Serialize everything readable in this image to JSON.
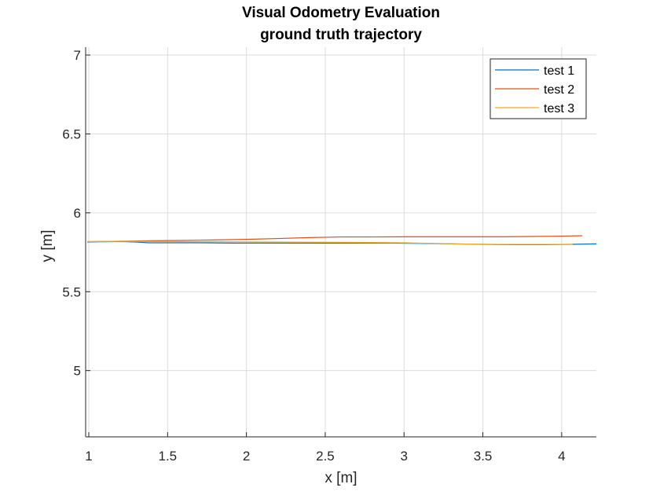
{
  "chart_data": {
    "type": "line",
    "title": "Visual Odometry Evaluation",
    "subtitle": "ground truth trajectory",
    "xlabel": "x [m]",
    "ylabel": "y [m]",
    "xlim": [
      0.98,
      4.22
    ],
    "ylim": [
      4.58,
      7.05
    ],
    "xticks": [
      1,
      1.5,
      2,
      2.5,
      3,
      3.5,
      4
    ],
    "xtick_labels": [
      "1",
      "1.5",
      "2",
      "2.5",
      "3",
      "3.5",
      "4"
    ],
    "yticks": [
      5,
      5.5,
      6,
      6.5,
      7
    ],
    "ytick_labels": [
      "5",
      "5.5",
      "6",
      "6.5",
      "7"
    ],
    "grid": true,
    "legend_position": "top-right",
    "series": [
      {
        "name": "test 1",
        "color": "#0072BD",
        "x": [
          0.99,
          1.1,
          1.2,
          1.3,
          1.38,
          1.5,
          1.7,
          1.9,
          2.1,
          2.3,
          2.5,
          2.7,
          2.9,
          3.1,
          3.3,
          3.5,
          3.7,
          3.9,
          4.05,
          4.22
        ],
        "y": [
          5.815,
          5.817,
          5.818,
          5.815,
          5.81,
          5.81,
          5.81,
          5.808,
          5.808,
          5.808,
          5.808,
          5.808,
          5.808,
          5.806,
          5.803,
          5.8,
          5.798,
          5.798,
          5.8,
          5.803
        ]
      },
      {
        "name": "test 2",
        "color": "#D95319",
        "x": [
          0.99,
          1.2,
          1.4,
          1.6,
          1.8,
          2.0,
          2.2,
          2.4,
          2.6,
          2.8,
          3.0,
          3.2,
          3.4,
          3.6,
          3.8,
          4.0,
          4.13
        ],
        "y": [
          5.817,
          5.82,
          5.823,
          5.825,
          5.828,
          5.832,
          5.837,
          5.843,
          5.847,
          5.847,
          5.848,
          5.848,
          5.848,
          5.848,
          5.85,
          5.852,
          5.855
        ]
      },
      {
        "name": "test 3",
        "color": "#EDB120",
        "x": [
          0.99,
          1.2,
          1.4,
          1.6,
          1.8,
          2.0,
          2.2,
          2.4,
          2.6,
          2.8,
          3.0,
          3.2,
          3.4,
          3.6,
          3.8,
          4.0,
          4.07
        ],
        "y": [
          5.818,
          5.82,
          5.818,
          5.817,
          5.817,
          5.816,
          5.815,
          5.814,
          5.813,
          5.812,
          5.81,
          5.806,
          5.802,
          5.8,
          5.8,
          5.8,
          5.8
        ]
      }
    ]
  }
}
